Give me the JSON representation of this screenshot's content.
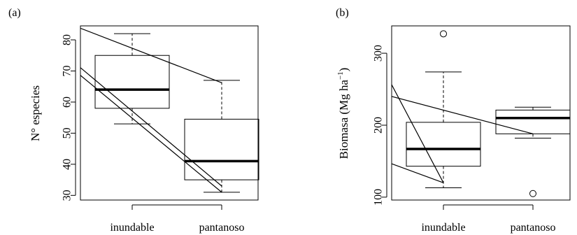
{
  "chart_data": [
    {
      "type": "boxplot",
      "panel_label": "(a)",
      "ylabel": "N° especies",
      "xlabel": "",
      "categories": [
        "inundable",
        "pantanoso"
      ],
      "ylim": [
        28.5,
        84.5
      ],
      "yticks": [
        30,
        40,
        50,
        60,
        70,
        80
      ],
      "boxes": [
        {
          "category": "inundable",
          "whisker_low": 53,
          "q1": 58,
          "median": 64,
          "q3": 75,
          "whisker_high": 82,
          "outliers": []
        },
        {
          "category": "pantanoso",
          "whisker_low": 31,
          "q1": 35,
          "median": 41,
          "q3": 54.5,
          "whisker_high": 67,
          "outliers": []
        }
      ],
      "lines": [
        {
          "x": [
            0.3,
            2.0
          ],
          "y": [
            85.1,
            66.2
          ]
        },
        {
          "x": [
            0.3,
            2.0
          ],
          "y": [
            74.0,
            33.0
          ]
        },
        {
          "x": [
            0.3,
            2.0
          ],
          "y": [
            71.5,
            31.0
          ]
        }
      ],
      "grid": false
    },
    {
      "type": "boxplot",
      "panel_label": "(b)",
      "ylabel": "Biomasa (Mg ha",
      "ylabel_sup": "−1",
      "ylabel_close": ")",
      "xlabel": "",
      "categories": [
        "inundable",
        "pantanoso"
      ],
      "ylim": [
        96,
        338
      ],
      "yticks": [
        100,
        200,
        300
      ],
      "boxes": [
        {
          "category": "inundable",
          "whisker_low": 113,
          "q1": 143,
          "median": 167,
          "q3": 204,
          "whisker_high": 274,
          "outliers": [
            327
          ]
        },
        {
          "category": "pantanoso",
          "whisker_low": 182,
          "q1": 188,
          "median": 210,
          "q3": 221,
          "whisker_high": 225,
          "outliers": [
            105
          ]
        }
      ],
      "lines": [
        {
          "x": [
            0.3,
            1.0
          ],
          "y": [
            285,
            120
          ]
        },
        {
          "x": [
            0.3,
            2.0
          ],
          "y": [
            244,
            188
          ]
        },
        {
          "x": [
            0.3,
            1.0
          ],
          "y": [
            152,
            120
          ]
        }
      ],
      "grid": false
    }
  ]
}
